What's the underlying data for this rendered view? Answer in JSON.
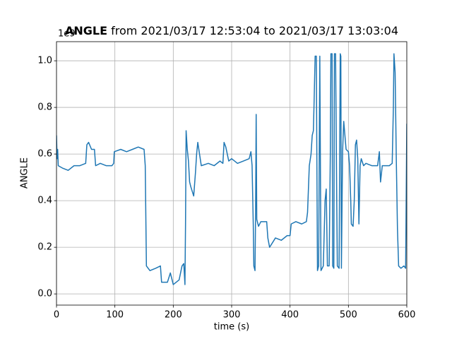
{
  "chart_data": {
    "type": "line",
    "title_bold": "ANGLE",
    "title": "from 2021/03/17 12:53:04 to 2021/03/17 13:03:04",
    "y_offset_label": "1e9",
    "x_label": "time (s)",
    "y_label": "ANGLE",
    "xlim": [
      0,
      600
    ],
    "ylim": [
      -0.048,
      1.082
    ],
    "xticks": [
      0,
      100,
      200,
      300,
      400,
      500,
      600
    ],
    "yticks": [
      {
        "value": 0,
        "label": "0.0"
      },
      0.2,
      0.4,
      0.6,
      0.8,
      {
        "value": 1,
        "label": "1.0"
      }
    ],
    "grid": true,
    "x": [
      0,
      1,
      2,
      3,
      10,
      20,
      30,
      40,
      50,
      52,
      55,
      60,
      65,
      67,
      75,
      85,
      95,
      98,
      99,
      110,
      120,
      130,
      140,
      150,
      152,
      154,
      160,
      170,
      178,
      180,
      190,
      195,
      200,
      210,
      215,
      218,
      220,
      221,
      222,
      224,
      226,
      228,
      230,
      235,
      238,
      240,
      242,
      245,
      248,
      260,
      270,
      280,
      285,
      287,
      290,
      295,
      300,
      310,
      320,
      330,
      333,
      335,
      337,
      338,
      340,
      341,
      342,
      343,
      346,
      350,
      360,
      362,
      365,
      370,
      375,
      385,
      395,
      400,
      402,
      410,
      420,
      428,
      430,
      433,
      436,
      438,
      440,
      441,
      443,
      445,
      447,
      449,
      451,
      453,
      457,
      460,
      462,
      464,
      467,
      469,
      470,
      472,
      473,
      475,
      476,
      478,
      480,
      481,
      484,
      486,
      487,
      488,
      490,
      492,
      494,
      496,
      500,
      502,
      504,
      505,
      508,
      510,
      512,
      514,
      516,
      518,
      520,
      522,
      526,
      530,
      540,
      550,
      553,
      555,
      558,
      570,
      575,
      577,
      578,
      580,
      582,
      584,
      586,
      590,
      595,
      598,
      600
    ],
    "series": [
      {
        "color": "#1f77b4",
        "values": [
          0.68,
          0.58,
          0.62,
          0.55,
          0.54,
          0.53,
          0.55,
          0.55,
          0.56,
          0.64,
          0.65,
          0.62,
          0.62,
          0.55,
          0.56,
          0.55,
          0.55,
          0.56,
          0.61,
          0.62,
          0.61,
          0.62,
          0.63,
          0.62,
          0.55,
          0.12,
          0.1,
          0.11,
          0.12,
          0.05,
          0.05,
          0.09,
          0.04,
          0.06,
          0.12,
          0.13,
          0.04,
          0.3,
          0.7,
          0.62,
          0.57,
          0.48,
          0.46,
          0.42,
          0.52,
          0.6,
          0.65,
          0.6,
          0.55,
          0.56,
          0.55,
          0.57,
          0.56,
          0.65,
          0.63,
          0.57,
          0.58,
          0.56,
          0.57,
          0.58,
          0.61,
          0.55,
          0.3,
          0.12,
          0.1,
          0.35,
          0.77,
          0.32,
          0.29,
          0.31,
          0.31,
          0.24,
          0.2,
          0.22,
          0.24,
          0.23,
          0.25,
          0.25,
          0.3,
          0.31,
          0.3,
          0.31,
          0.35,
          0.55,
          0.6,
          0.68,
          0.7,
          0.8,
          1.02,
          1.02,
          0.1,
          0.12,
          1.02,
          0.1,
          0.12,
          0.4,
          0.45,
          0.12,
          0.12,
          0.6,
          1.03,
          1.03,
          0.12,
          0.11,
          1.03,
          1.03,
          0.4,
          0.12,
          0.11,
          1.03,
          1.02,
          0.11,
          0.61,
          0.74,
          0.68,
          0.62,
          0.61,
          0.55,
          0.4,
          0.3,
          0.29,
          0.4,
          0.64,
          0.66,
          0.58,
          0.3,
          0.55,
          0.58,
          0.55,
          0.56,
          0.55,
          0.55,
          0.61,
          0.48,
          0.55,
          0.55,
          0.56,
          0.8,
          1.03,
          0.95,
          0.58,
          0.28,
          0.12,
          0.11,
          0.12,
          0.11,
          0.73
        ]
      }
    ]
  }
}
